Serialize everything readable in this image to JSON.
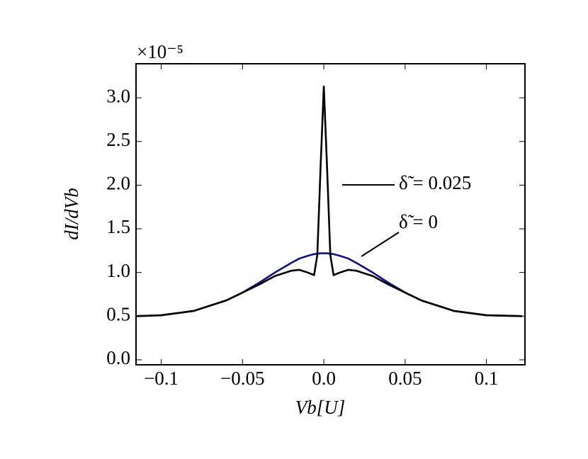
{
  "chart_data": {
    "type": "line",
    "xlabel": "Vb[U]",
    "ylabel": "dI/dVb",
    "y_multiplier": "×10⁻⁵",
    "x": [
      -0.115,
      -0.1,
      -0.08,
      -0.06,
      -0.05,
      -0.04,
      -0.03,
      -0.02,
      -0.015,
      -0.01,
      -0.006,
      -0.004,
      -0.002,
      0,
      0.002,
      0.004,
      0.006,
      0.01,
      0.015,
      0.02,
      0.03,
      0.04,
      0.05,
      0.06,
      0.08,
      0.1,
      0.122
    ],
    "series": [
      {
        "name": "δ̃ = 0.025",
        "color": "#000000",
        "values": [
          0.5,
          0.51,
          0.56,
          0.68,
          0.77,
          0.86,
          0.96,
          1.02,
          1.03,
          1.0,
          0.97,
          1.2,
          2.2,
          3.13,
          2.2,
          1.2,
          0.97,
          1.0,
          1.03,
          1.02,
          0.96,
          0.86,
          0.77,
          0.68,
          0.56,
          0.51,
          0.5
        ]
      },
      {
        "name": "δ̃ = 0",
        "color": "#10108a",
        "values": [
          0.5,
          0.51,
          0.56,
          0.68,
          0.77,
          0.88,
          1.0,
          1.11,
          1.16,
          1.19,
          1.21,
          1.215,
          1.22,
          1.22,
          1.22,
          1.215,
          1.21,
          1.19,
          1.16,
          1.11,
          1.0,
          0.88,
          0.77,
          0.68,
          0.56,
          0.51,
          0.5
        ]
      }
    ],
    "xlim": [
      -0.1155,
      0.1237
    ],
    "ylim": [
      -0.057,
      3.39
    ],
    "xticks": [
      {
        "value": -0.1,
        "label": "−0.1"
      },
      {
        "value": -0.05,
        "label": "−0.05"
      },
      {
        "value": 0,
        "label": "0.0"
      },
      0.05,
      0.1
    ],
    "yticks": [
      {
        "value": 0,
        "label": "0.0"
      },
      0.5,
      {
        "value": 1,
        "label": "1.0"
      },
      1.5,
      {
        "value": 2,
        "label": "2.0"
      },
      2.5,
      {
        "value": 3,
        "label": "3.0"
      }
    ],
    "grid": false
  }
}
